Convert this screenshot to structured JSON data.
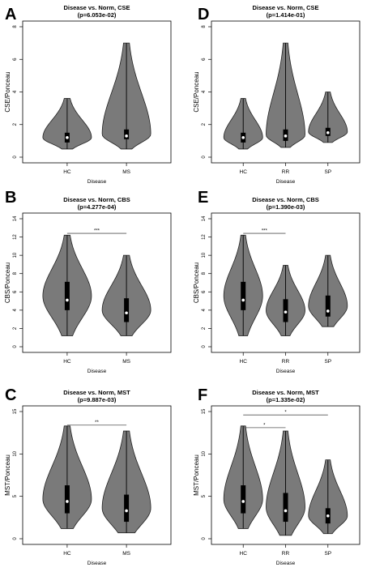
{
  "chart_data": [
    {
      "panel_letter": "A",
      "type": "violin",
      "title": "Disease vs. Norm, CSE",
      "subtitle": "(p=6.053e-02)",
      "xlabel": "Disease",
      "ylabel": "CSE/Ponceau",
      "ylim": [
        0,
        8
      ],
      "yticks": [
        0,
        2,
        4,
        6,
        8
      ],
      "categories": [
        "HC",
        "MS"
      ],
      "series": [
        {
          "category": "HC",
          "min": 0.5,
          "q1": 0.9,
          "median": 1.2,
          "q3": 1.5,
          "max": 3.6
        },
        {
          "category": "MS",
          "min": 0.5,
          "q1": 1.1,
          "median": 1.3,
          "q3": 1.7,
          "max": 7.0
        }
      ],
      "significance": []
    },
    {
      "panel_letter": "D",
      "type": "violin",
      "title": "Disease vs. Norm, CSE",
      "subtitle": "(p=1.414e-01)",
      "xlabel": "Disease",
      "ylabel": "CSE/Ponceau",
      "ylim": [
        0,
        8
      ],
      "yticks": [
        0,
        2,
        4,
        6,
        8
      ],
      "categories": [
        "HC",
        "RR",
        "SP"
      ],
      "series": [
        {
          "category": "HC",
          "min": 0.5,
          "q1": 0.9,
          "median": 1.2,
          "q3": 1.5,
          "max": 3.6
        },
        {
          "category": "RR",
          "min": 0.6,
          "q1": 1.0,
          "median": 1.3,
          "q3": 1.7,
          "max": 7.0
        },
        {
          "category": "SP",
          "min": 0.9,
          "q1": 1.3,
          "median": 1.5,
          "q3": 1.8,
          "max": 4.0
        }
      ],
      "significance": []
    },
    {
      "panel_letter": "B",
      "type": "violin",
      "title": "Disease vs. Norm, CBS",
      "subtitle": "(p=4.277e-04)",
      "xlabel": "Disease",
      "ylabel": "CBS/Ponceau",
      "ylim": [
        0,
        14
      ],
      "yticks": [
        0,
        2,
        4,
        6,
        8,
        10,
        12,
        14
      ],
      "categories": [
        "HC",
        "MS"
      ],
      "series": [
        {
          "category": "HC",
          "min": 1.2,
          "q1": 4.0,
          "median": 5.1,
          "q3": 7.1,
          "max": 12.2
        },
        {
          "category": "MS",
          "min": 1.2,
          "q1": 2.7,
          "median": 3.7,
          "q3": 5.3,
          "max": 10.0
        }
      ],
      "significance": [
        {
          "from": "HC",
          "to": "MS",
          "label": "***",
          "y": 12.4
        }
      ]
    },
    {
      "panel_letter": "E",
      "type": "violin",
      "title": "Disease vs. Norm, CBS",
      "subtitle": "(p=1.390e-03)",
      "xlabel": "Disease",
      "ylabel": "CBS/Ponceau",
      "ylim": [
        0,
        14
      ],
      "yticks": [
        0,
        2,
        4,
        6,
        8,
        10,
        12,
        14
      ],
      "categories": [
        "HC",
        "RR",
        "SP"
      ],
      "series": [
        {
          "category": "HC",
          "min": 1.2,
          "q1": 4.0,
          "median": 5.1,
          "q3": 7.1,
          "max": 12.2
        },
        {
          "category": "RR",
          "min": 1.2,
          "q1": 2.7,
          "median": 3.8,
          "q3": 5.2,
          "max": 8.9
        },
        {
          "category": "SP",
          "min": 2.2,
          "q1": 3.3,
          "median": 3.9,
          "q3": 5.6,
          "max": 10.0
        }
      ],
      "significance": [
        {
          "from": "HC",
          "to": "RR",
          "label": "***",
          "y": 12.4
        }
      ]
    },
    {
      "panel_letter": "C",
      "type": "violin",
      "title": "Disease vs. Norm, MST",
      "subtitle": "(p=9.887e-03)",
      "xlabel": "Disease",
      "ylabel": "MST/Ponceau",
      "ylim": [
        0,
        15
      ],
      "yticks": [
        0,
        5,
        10,
        15
      ],
      "categories": [
        "HC",
        "MS"
      ],
      "series": [
        {
          "category": "HC",
          "min": 1.2,
          "q1": 3.0,
          "median": 4.4,
          "q3": 6.3,
          "max": 13.3
        },
        {
          "category": "MS",
          "min": 0.7,
          "q1": 2.0,
          "median": 3.3,
          "q3": 5.2,
          "max": 12.7
        }
      ],
      "significance": [
        {
          "from": "HC",
          "to": "MS",
          "label": "**",
          "y": 13.4
        }
      ]
    },
    {
      "panel_letter": "F",
      "type": "violin",
      "title": "Disease vs. Norm, MST",
      "subtitle": "(p=1.335e-02)",
      "xlabel": "Disease",
      "ylabel": "MST/Ponceau",
      "ylim": [
        0,
        15
      ],
      "yticks": [
        0,
        5,
        10,
        15
      ],
      "categories": [
        "HC",
        "RR",
        "SP"
      ],
      "series": [
        {
          "category": "HC",
          "min": 1.2,
          "q1": 3.0,
          "median": 4.4,
          "q3": 6.3,
          "max": 13.3
        },
        {
          "category": "RR",
          "min": 0.4,
          "q1": 2.0,
          "median": 3.3,
          "q3": 5.4,
          "max": 12.7
        },
        {
          "category": "SP",
          "min": 0.6,
          "q1": 1.8,
          "median": 2.7,
          "q3": 3.6,
          "max": 9.3
        }
      ],
      "significance": [
        {
          "from": "HC",
          "to": "RR",
          "label": "*",
          "y": 13.1
        },
        {
          "from": "HC",
          "to": "SP",
          "label": "*",
          "y": 14.6
        }
      ]
    }
  ]
}
